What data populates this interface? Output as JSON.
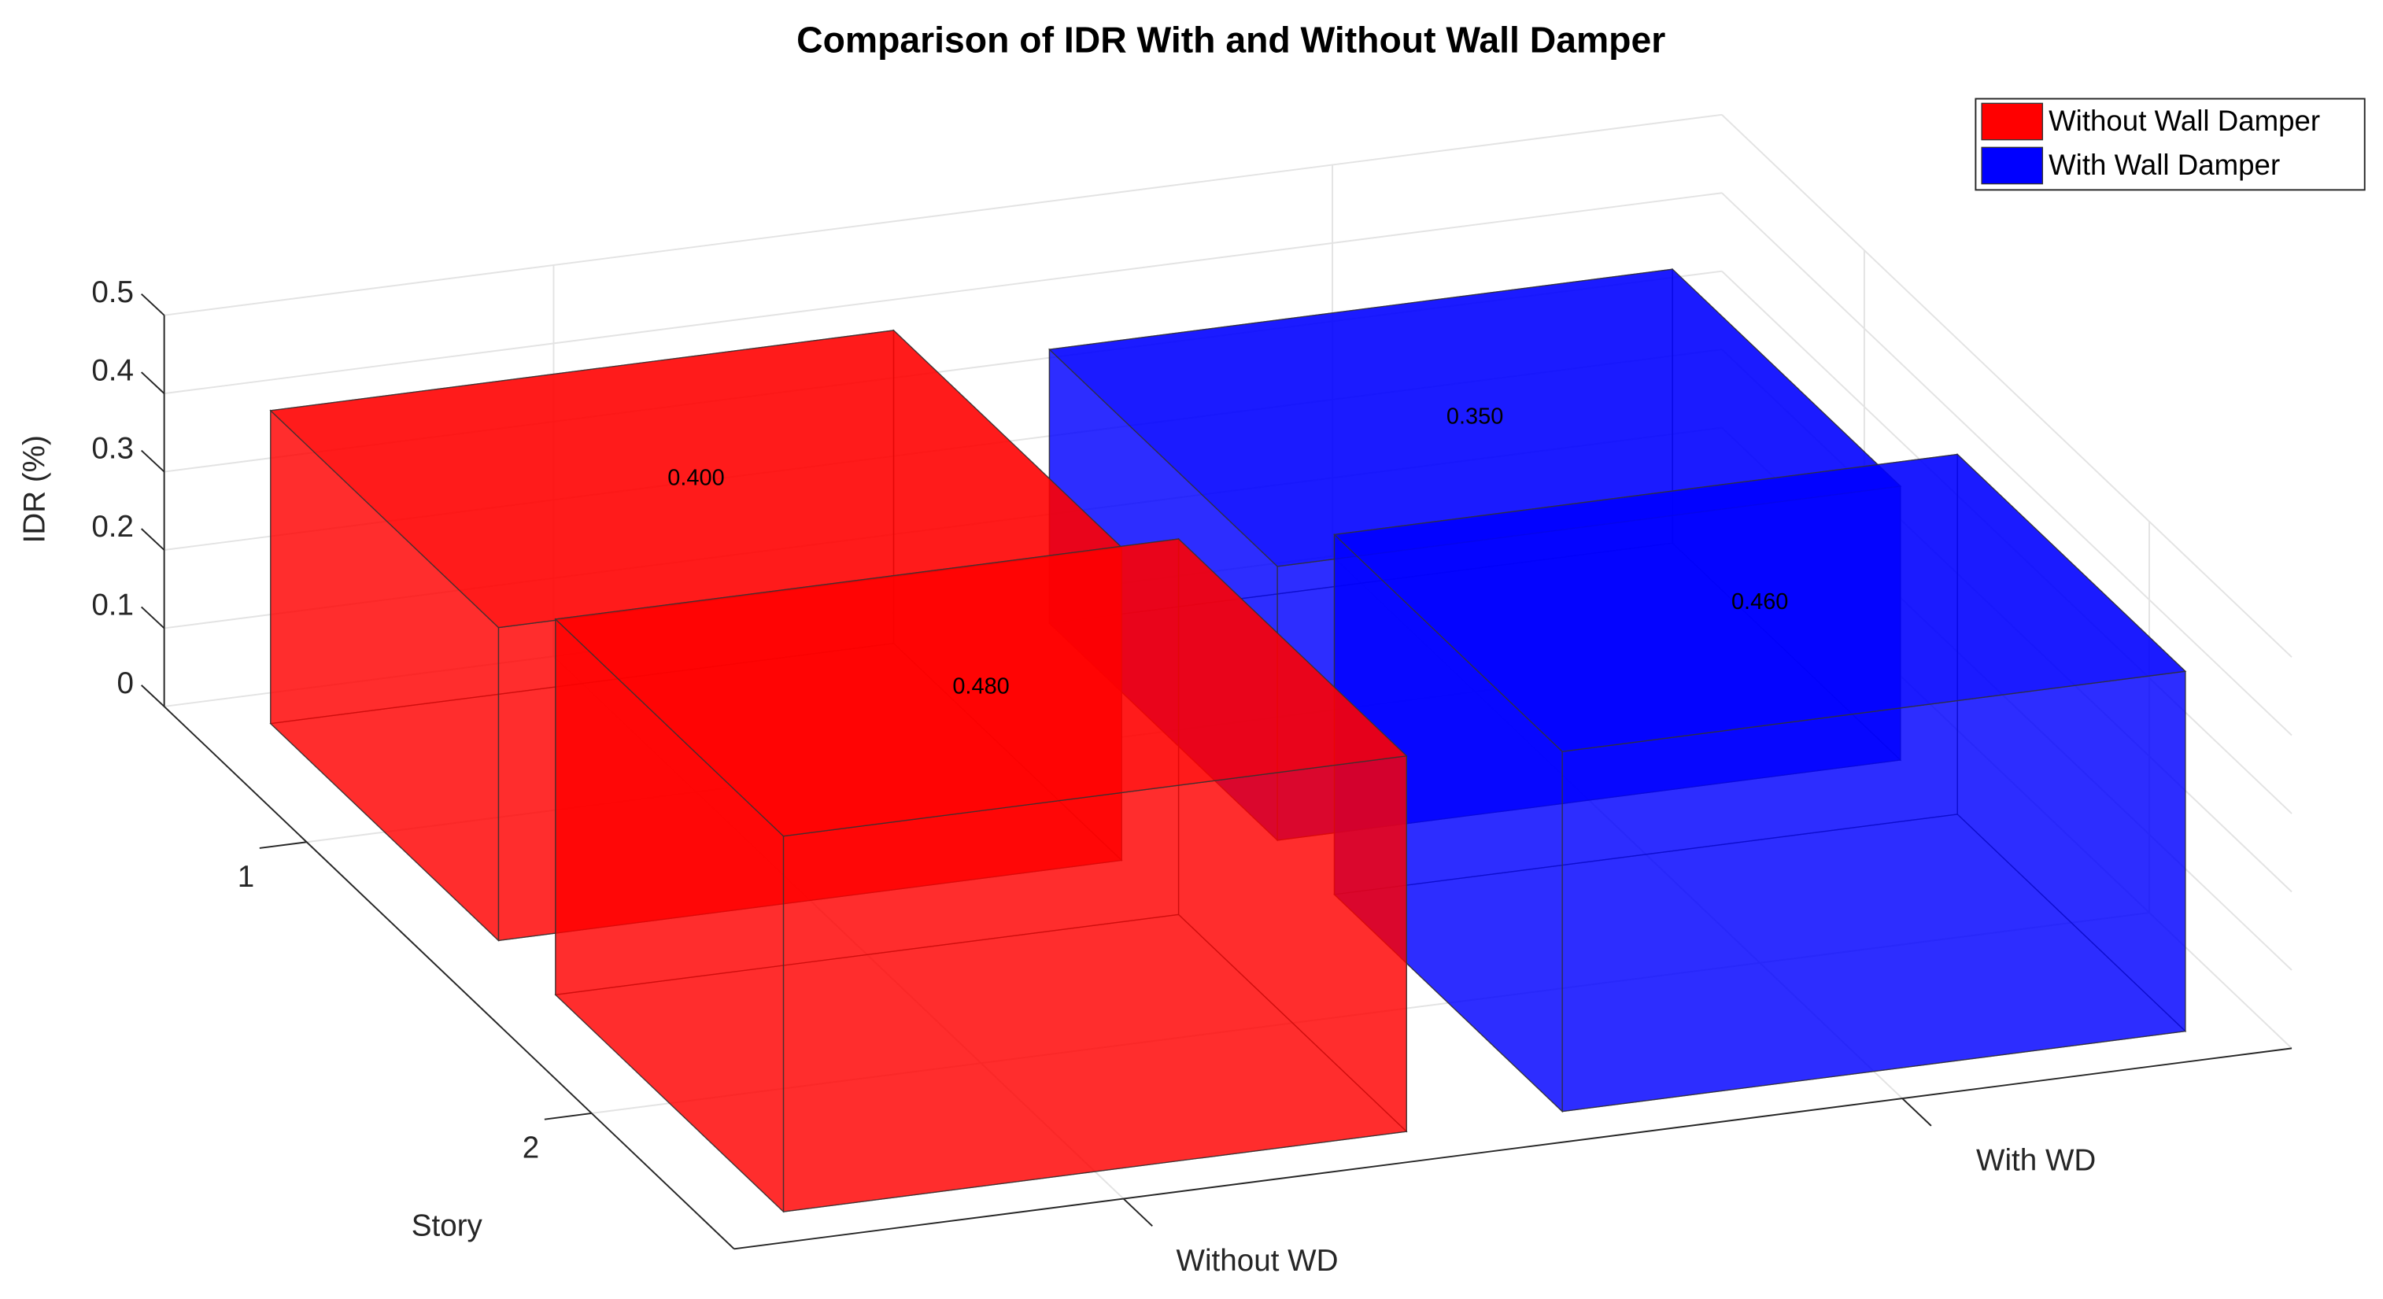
{
  "chart_data": {
    "type": "bar3d",
    "title": "Comparison of IDR With and Without Wall Damper",
    "categories": [
      "Without WD",
      "With WD"
    ],
    "stories": [
      "1",
      "2"
    ],
    "ylabel": "Story",
    "zlabel": "IDR (%)",
    "series": [
      {
        "name": "Without Wall Damper",
        "color": "#ff0000",
        "values": [
          0.4,
          0.48
        ],
        "value_labels": [
          "0.400",
          "0.480"
        ]
      },
      {
        "name": "With Wall Damper",
        "color": "#0000ff",
        "values": [
          0.35,
          0.46
        ],
        "value_labels": [
          "0.350",
          "0.460"
        ]
      }
    ],
    "zlim": [
      0,
      0.5
    ],
    "zticks": [
      0,
      0.1,
      0.2,
      0.3,
      0.4,
      0.5
    ],
    "grid": true,
    "legend": "upper right"
  }
}
